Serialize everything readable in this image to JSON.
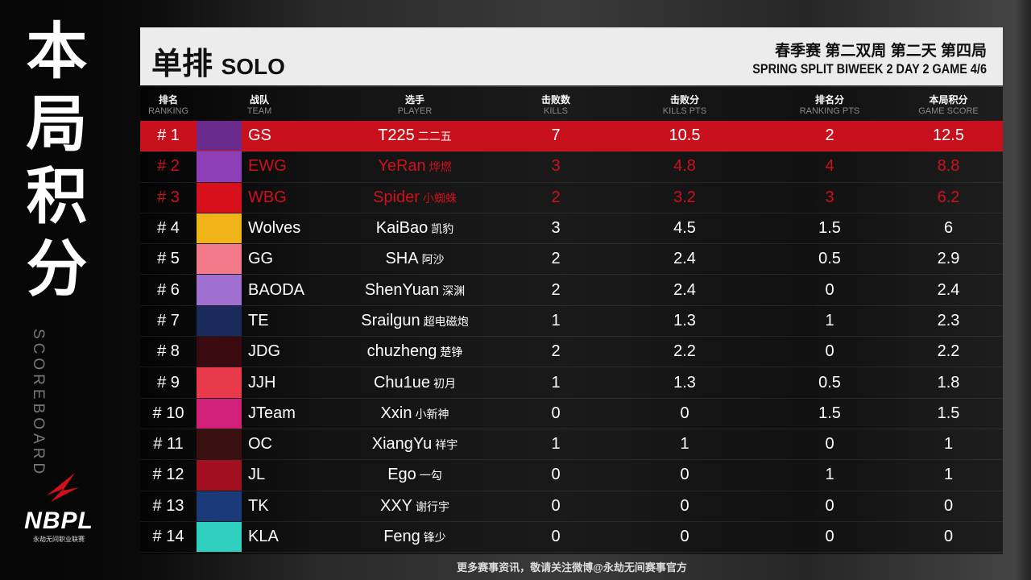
{
  "side": {
    "title_chars": [
      "本",
      "局",
      "积",
      "分"
    ],
    "subtitle": "SCOREBOARD",
    "logo_text": "NBPL",
    "logo_sub": "永劫无间职业联赛"
  },
  "header": {
    "title_cn": "单排",
    "title_en": "SOLO",
    "event_cn": "春季赛 第二双周 第二天 第四局",
    "event_en": "SPRING SPLIT BIWEEK 2 DAY 2 GAME 4/6"
  },
  "columns": [
    {
      "cn": "排名",
      "en": "RANKING"
    },
    {
      "cn": "战队",
      "en": "TEAM"
    },
    {
      "cn": "选手",
      "en": "PLAYER"
    },
    {
      "cn": "击败数",
      "en": "KILLS"
    },
    {
      "cn": "击败分",
      "en": "KILLS PTS"
    },
    {
      "cn": "排名分",
      "en": "RANKING PTS"
    },
    {
      "cn": "本局积分",
      "en": "GAME SCORE"
    }
  ],
  "rows": [
    {
      "rank": "# 1",
      "team": "GS",
      "player": "T225",
      "player_cn": "二二五",
      "kills": "7",
      "kpts": "10.5",
      "rpts": "2",
      "score": "12.5",
      "color": "#6a2a8c"
    },
    {
      "rank": "# 2",
      "team": "EWG",
      "player": "YeRan",
      "player_cn": "烨燃",
      "kills": "3",
      "kpts": "4.8",
      "rpts": "4",
      "score": "8.8",
      "color": "#8e3fb8"
    },
    {
      "rank": "# 3",
      "team": "WBG",
      "player": "Spider",
      "player_cn": "小蜘蛛",
      "kills": "2",
      "kpts": "3.2",
      "rpts": "3",
      "score": "6.2",
      "color": "#d8101c"
    },
    {
      "rank": "# 4",
      "team": "Wolves",
      "player": "KaiBao",
      "player_cn": "凯豹",
      "kills": "3",
      "kpts": "4.5",
      "rpts": "1.5",
      "score": "6",
      "color": "#f0b418"
    },
    {
      "rank": "# 5",
      "team": "GG",
      "player": "SHA",
      "player_cn": "阿沙",
      "kills": "2",
      "kpts": "2.4",
      "rpts": "0.5",
      "score": "2.9",
      "color": "#f07a8a"
    },
    {
      "rank": "# 6",
      "team": "BAODA",
      "player": "ShenYuan",
      "player_cn": "深渊",
      "kills": "2",
      "kpts": "2.4",
      "rpts": "0",
      "score": "2.4",
      "color": "#a070d0"
    },
    {
      "rank": "# 7",
      "team": "TE",
      "player": "Srailgun",
      "player_cn": "超电磁炮",
      "kills": "1",
      "kpts": "1.3",
      "rpts": "1",
      "score": "2.3",
      "color": "#1a2a5a"
    },
    {
      "rank": "# 8",
      "team": "JDG",
      "player": "chuzheng",
      "player_cn": "楚铮",
      "kills": "2",
      "kpts": "2.2",
      "rpts": "0",
      "score": "2.2",
      "color": "#3a0a10"
    },
    {
      "rank": "# 9",
      "team": "JJH",
      "player": "Chu1ue",
      "player_cn": "初月",
      "kills": "1",
      "kpts": "1.3",
      "rpts": "0.5",
      "score": "1.8",
      "color": "#e83a4a"
    },
    {
      "rank": "# 10",
      "team": "JTeam",
      "player": "Xxin",
      "player_cn": "小新神",
      "kills": "0",
      "kpts": "0",
      "rpts": "1.5",
      "score": "1.5",
      "color": "#d0207a"
    },
    {
      "rank": "# 11",
      "team": "OC",
      "player": "XiangYu",
      "player_cn": "祥宇",
      "kills": "1",
      "kpts": "1",
      "rpts": "0",
      "score": "1",
      "color": "#3a1010"
    },
    {
      "rank": "# 12",
      "team": "JL",
      "player": "Ego",
      "player_cn": "一勾",
      "kills": "0",
      "kpts": "0",
      "rpts": "1",
      "score": "1",
      "color": "#a01020"
    },
    {
      "rank": "# 13",
      "team": "TK",
      "player": "XXY",
      "player_cn": "谢行宇",
      "kills": "0",
      "kpts": "0",
      "rpts": "0",
      "score": "0",
      "color": "#1a3a7a"
    },
    {
      "rank": "# 14",
      "team": "KLA",
      "player": "Feng",
      "player_cn": "锋少",
      "kills": "0",
      "kpts": "0",
      "rpts": "0",
      "score": "0",
      "color": "#30d0c0"
    }
  ],
  "footer": "更多赛事资讯，敬请关注微博@永劫无间赛事官方"
}
